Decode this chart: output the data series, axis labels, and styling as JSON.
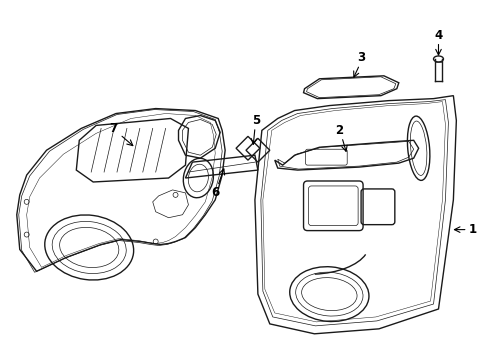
{
  "bg_color": "#ffffff",
  "line_color": "#1a1a1a",
  "lw_main": 1.0,
  "lw_thin": 0.5,
  "figsize": [
    4.89,
    3.6
  ],
  "dpi": 100
}
